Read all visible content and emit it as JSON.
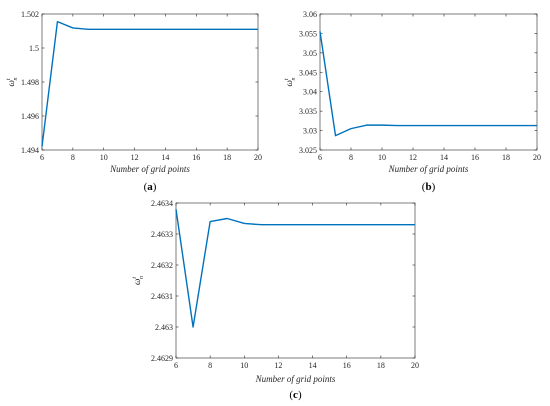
{
  "colors": {
    "line": "#0072BD",
    "axis": "#262626"
  },
  "chart_data": [
    {
      "id": "a",
      "type": "line",
      "panel_label": [
        "(",
        "a",
        ")"
      ],
      "xlabel": "Number of grid points",
      "ylabel": "ω",
      "ylabel_sup": "t",
      "ylabel_sub": "n",
      "xlim": [
        6,
        20
      ],
      "ylim": [
        1.494,
        1.502
      ],
      "xticks": [
        6,
        8,
        10,
        12,
        14,
        16,
        18,
        20
      ],
      "yticks": [
        1.494,
        1.496,
        1.498,
        1.5,
        1.502
      ],
      "ytick_labels": [
        "1.494",
        "1.496",
        "1.498",
        "1.5",
        "1.502"
      ],
      "series": [
        {
          "x": [
            6,
            7,
            8,
            9,
            10,
            11,
            12,
            13,
            14,
            15,
            16,
            17,
            18,
            19,
            20
          ],
          "y": [
            1.4942,
            1.50155,
            1.50118,
            1.5011,
            1.5011,
            1.5011,
            1.5011,
            1.5011,
            1.5011,
            1.5011,
            1.5011,
            1.5011,
            1.5011,
            1.5011,
            1.5011
          ]
        }
      ]
    },
    {
      "id": "b",
      "type": "line",
      "panel_label": [
        "(",
        "b",
        ")"
      ],
      "xlabel": "Number of grid points",
      "ylabel": "ω",
      "ylabel_sup": "t",
      "ylabel_sub": "n",
      "xlim": [
        6,
        20
      ],
      "ylim": [
        3.025,
        3.06
      ],
      "xticks": [
        6,
        8,
        10,
        12,
        14,
        16,
        18,
        20
      ],
      "yticks": [
        3.025,
        3.03,
        3.035,
        3.04,
        3.045,
        3.05,
        3.055,
        3.06
      ],
      "ytick_labels": [
        "3.025",
        "3.03",
        "3.035",
        "3.04",
        "3.045",
        "3.05",
        "3.055",
        "3.06"
      ],
      "series": [
        {
          "x": [
            6,
            7,
            8,
            9,
            10,
            11,
            12,
            13,
            14,
            15,
            16,
            17,
            18,
            19,
            20
          ],
          "y": [
            3.0555,
            3.0287,
            3.0305,
            3.0314,
            3.0314,
            3.0313,
            3.0313,
            3.0313,
            3.0313,
            3.0313,
            3.0313,
            3.0313,
            3.0313,
            3.0313,
            3.0313
          ]
        }
      ]
    },
    {
      "id": "c",
      "type": "line",
      "panel_label": [
        "(",
        "c",
        ")"
      ],
      "xlabel": "Number of grid points",
      "ylabel": "ω",
      "ylabel_sup": "t",
      "ylabel_sub": "n",
      "xlim": [
        6,
        20
      ],
      "ylim": [
        2.4629,
        2.4634
      ],
      "xticks": [
        6,
        8,
        10,
        12,
        14,
        16,
        18,
        20
      ],
      "yticks": [
        2.4629,
        2.463,
        2.4631,
        2.4632,
        2.4633,
        2.4634
      ],
      "ytick_labels": [
        "2.4629",
        "2.463",
        "2.4631",
        "2.4632",
        "2.4633",
        "2.4634"
      ],
      "series": [
        {
          "x": [
            6,
            7,
            8,
            9,
            10,
            11,
            12,
            13,
            14,
            15,
            16,
            17,
            18,
            19,
            20
          ],
          "y": [
            2.46338,
            2.463,
            2.46334,
            2.46335,
            2.463334,
            2.46333,
            2.46333,
            2.46333,
            2.46333,
            2.46333,
            2.46333,
            2.46333,
            2.46333,
            2.46333,
            2.46333
          ]
        }
      ]
    }
  ]
}
